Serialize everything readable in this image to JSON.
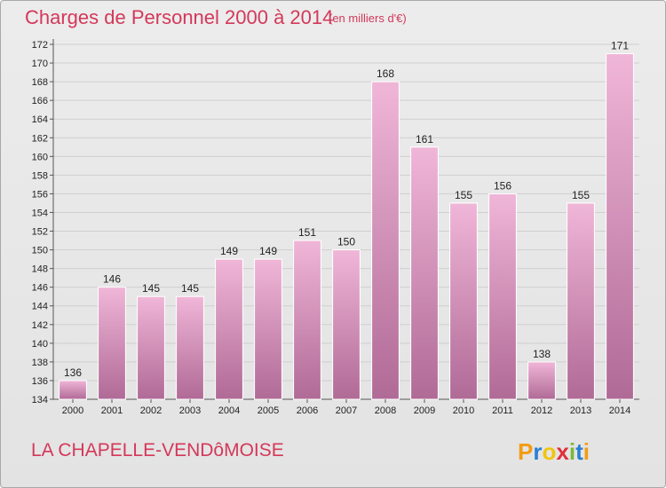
{
  "header": {
    "title": "Charges de Personnel 2000 à 2014",
    "unit": "(en milliers d'€)"
  },
  "footer": {
    "commune": "LA CHAPELLE-VENDôMOISE",
    "logo_letters": [
      "P",
      "r",
      "o",
      "x",
      "i",
      "t",
      "i"
    ],
    "logo_colors": [
      "#f39c12",
      "#2a7fd4",
      "#f1c40f",
      "#e0303a",
      "#7ab83a",
      "#2a7fd4",
      "#f39c12"
    ]
  },
  "colors": {
    "accent": "#d4385a",
    "bar_top": "#f0b6d8",
    "bar_bottom": "#b06a96",
    "bar_edge": "#ffffff"
  },
  "chart_data": {
    "type": "bar",
    "categories": [
      "2000",
      "2001",
      "2002",
      "2003",
      "2004",
      "2005",
      "2006",
      "2007",
      "2008",
      "2009",
      "2010",
      "2011",
      "2012",
      "2013",
      "2014"
    ],
    "values": [
      136,
      146,
      145,
      145,
      149,
      149,
      151,
      150,
      168,
      161,
      155,
      156,
      138,
      155,
      171
    ],
    "title": "Charges de Personnel 2000 à 2014",
    "subtitle": "(en milliers d'€)",
    "xlabel": "",
    "ylabel": "",
    "ylim": [
      134,
      172
    ],
    "yticks": [
      134,
      136,
      138,
      140,
      142,
      144,
      146,
      148,
      150,
      152,
      154,
      156,
      158,
      160,
      162,
      164,
      166,
      168,
      170,
      172
    ],
    "grid": true,
    "legend": "none"
  }
}
